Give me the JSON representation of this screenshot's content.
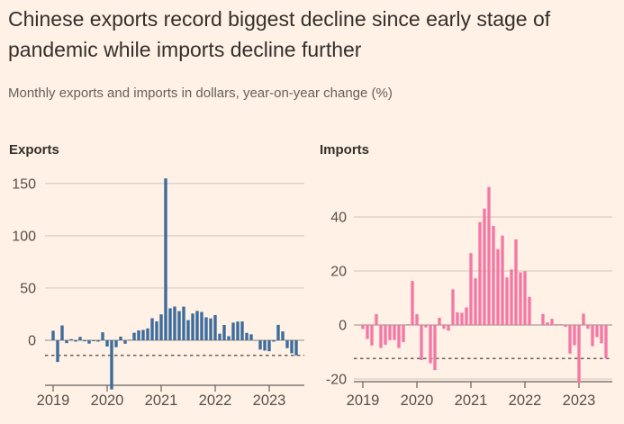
{
  "page": {
    "background_color": "#fff1e5"
  },
  "header": {
    "title": "Chinese exports record biggest decline since early stage of pandemic while imports decline further",
    "subtitle": "Monthly exports and imports in dollars, year-on-year change (%)"
  },
  "colors": {
    "exports_bar": "#3d6c9c",
    "imports_bar": "#f478a6",
    "gridline": "#d9cec3",
    "zero_line": "#a9a195",
    "axis": "#66605c",
    "dashed_line": "#33302e",
    "title_text": "#33302e",
    "subtitle_text": "#66605c",
    "tick_text": "#55504b"
  },
  "chart_data": [
    {
      "type": "bar",
      "title": "Exports",
      "unit": "%",
      "color": "#3d6c9c",
      "grid": true,
      "legend": "none",
      "yticks": [
        0,
        50,
        100,
        150
      ],
      "ylim": [
        -43,
        160
      ],
      "xticks": [
        "2019",
        "2020",
        "2021",
        "2022",
        "2023"
      ],
      "dashed_reference_line": -14.5,
      "note": "Feb 2020 bar extends below the plot bottom (clipped at axis); dashed line marks latest value -14.5%",
      "x": [
        "2019-01",
        "2019-02",
        "2019-03",
        "2019-04",
        "2019-05",
        "2019-06",
        "2019-07",
        "2019-08",
        "2019-09",
        "2019-10",
        "2019-11",
        "2019-12",
        "2020-01",
        "2020-02",
        "2020-03",
        "2020-04",
        "2020-05",
        "2020-06",
        "2020-07",
        "2020-08",
        "2020-09",
        "2020-10",
        "2020-11",
        "2020-12",
        "2021-01",
        "2021-02",
        "2021-03",
        "2021-04",
        "2021-05",
        "2021-06",
        "2021-07",
        "2021-08",
        "2021-09",
        "2021-10",
        "2021-11",
        "2021-12",
        "2022-01",
        "2022-02",
        "2022-03",
        "2022-04",
        "2022-05",
        "2022-06",
        "2022-07",
        "2022-08",
        "2022-09",
        "2022-10",
        "2022-11",
        "2022-12",
        "2023-01",
        "2023-02",
        "2023-03",
        "2023-04",
        "2023-05",
        "2023-06",
        "2023-07"
      ],
      "values": [
        9.1,
        -20.8,
        14.2,
        -2.7,
        1.1,
        -1.3,
        3.3,
        -1.0,
        -3.2,
        -0.9,
        -1.3,
        7.6,
        -6.0,
        -47.0,
        -6.6,
        3.5,
        -3.3,
        0.5,
        7.2,
        9.5,
        9.9,
        11.4,
        21.1,
        18.1,
        24.8,
        154.9,
        30.6,
        32.3,
        27.9,
        32.2,
        19.3,
        25.6,
        28.1,
        27.1,
        22.0,
        20.9,
        24.1,
        6.3,
        14.7,
        3.9,
        16.9,
        17.9,
        18.0,
        7.1,
        5.7,
        -0.3,
        -8.9,
        -9.9,
        -10.5,
        -1.3,
        14.8,
        8.5,
        -7.5,
        -12.4,
        -14.5
      ]
    },
    {
      "type": "bar",
      "title": "Imports",
      "unit": "%",
      "color": "#f478a6",
      "grid": true,
      "legend": "none",
      "yticks": [
        -20,
        0,
        20,
        40
      ],
      "ylim": [
        -21,
        55
      ],
      "xticks": [
        "2019",
        "2020",
        "2021",
        "2022",
        "2023"
      ],
      "dashed_reference_line": -12.4,
      "note": "Jan 2023 bar reaches about -21 just below the -20 gridline; dashed line marks latest value -12.4%",
      "x": [
        "2019-01",
        "2019-02",
        "2019-03",
        "2019-04",
        "2019-05",
        "2019-06",
        "2019-07",
        "2019-08",
        "2019-09",
        "2019-10",
        "2019-11",
        "2019-12",
        "2020-01",
        "2020-02",
        "2020-03",
        "2020-04",
        "2020-05",
        "2020-06",
        "2020-07",
        "2020-08",
        "2020-09",
        "2020-10",
        "2020-11",
        "2020-12",
        "2021-01",
        "2021-02",
        "2021-03",
        "2021-04",
        "2021-05",
        "2021-06",
        "2021-07",
        "2021-08",
        "2021-09",
        "2021-10",
        "2021-11",
        "2021-12",
        "2022-01",
        "2022-02",
        "2022-03",
        "2022-04",
        "2022-05",
        "2022-06",
        "2022-07",
        "2022-08",
        "2022-09",
        "2022-10",
        "2022-11",
        "2022-12",
        "2023-01",
        "2023-02",
        "2023-03",
        "2023-04",
        "2023-05",
        "2023-06",
        "2023-07"
      ],
      "values": [
        -1.5,
        -5.2,
        -7.6,
        4.0,
        -8.5,
        -7.3,
        -5.6,
        -5.6,
        -8.5,
        -6.4,
        0.3,
        16.3,
        4.0,
        -13.0,
        -0.9,
        -14.2,
        -16.7,
        2.7,
        -1.4,
        -2.1,
        13.2,
        4.7,
        4.5,
        6.5,
        26.6,
        17.3,
        38.1,
        43.1,
        51.1,
        36.7,
        28.1,
        33.1,
        17.6,
        20.6,
        31.7,
        19.5,
        19.9,
        10.4,
        -0.1,
        0.0,
        4.1,
        1.0,
        2.3,
        0.3,
        0.3,
        -0.7,
        -10.6,
        -7.5,
        -21.4,
        4.2,
        -1.4,
        -7.9,
        -4.5,
        -6.8,
        -12.4
      ]
    }
  ]
}
